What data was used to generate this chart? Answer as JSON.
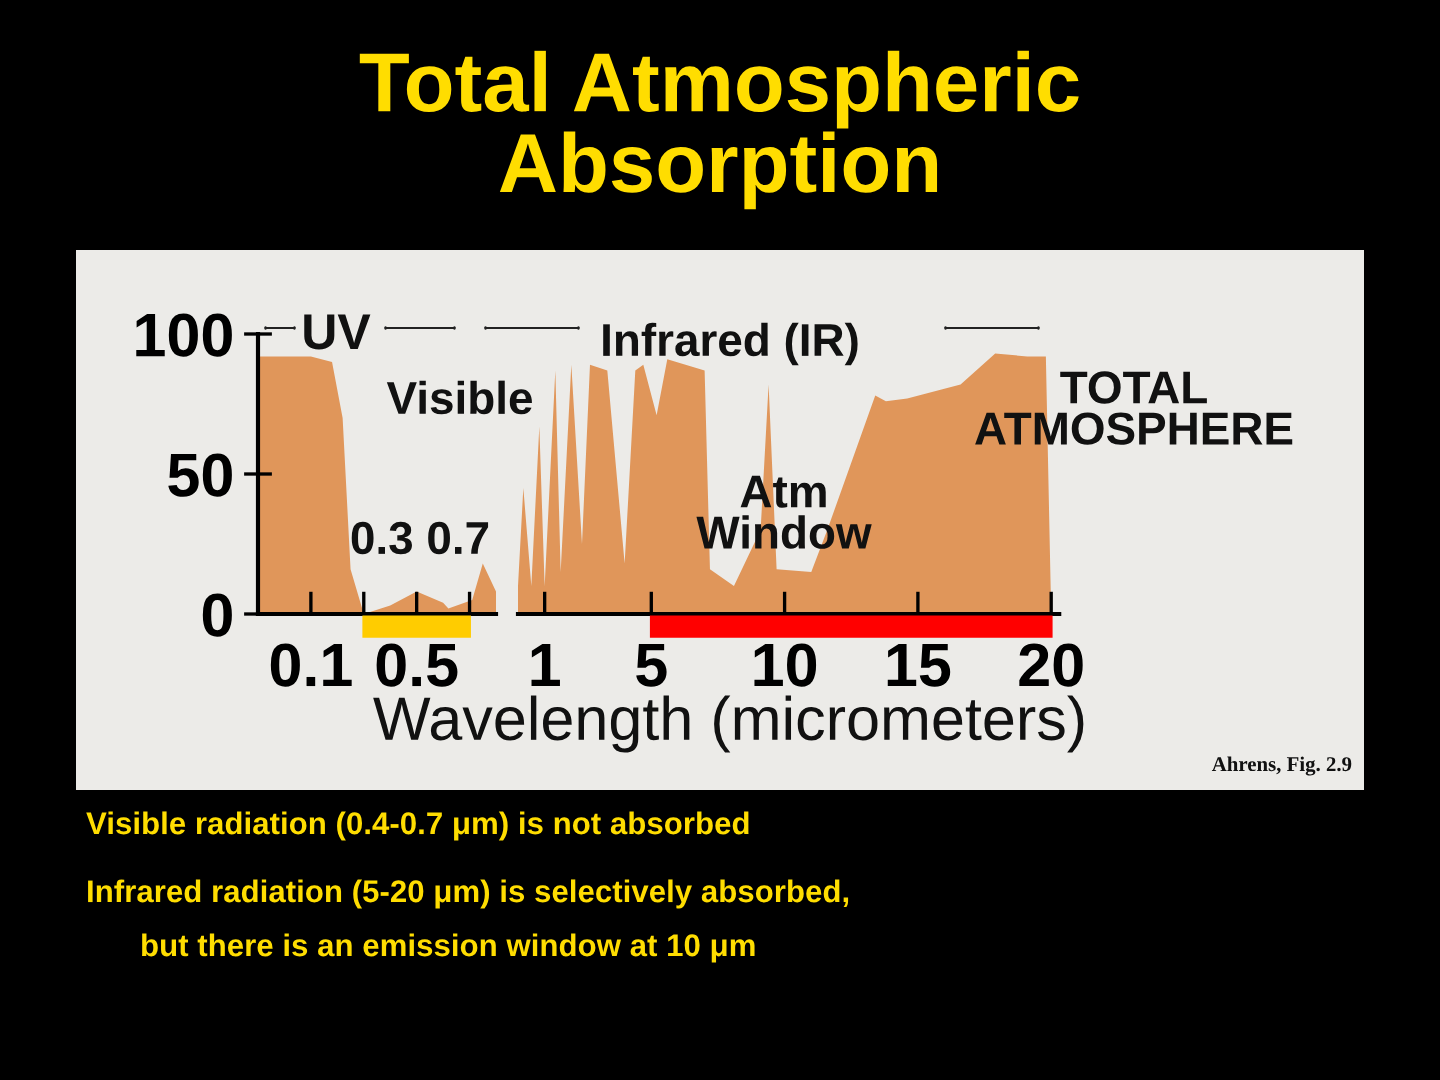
{
  "chart_data": [
    {
      "type": "area",
      "title": "Total Atmospheric\nAbsorption",
      "xlabel": "Wavelength (micrometers)",
      "color": "#e0965a",
      "x": [
        -0.1,
        0.0,
        0.1,
        0.18,
        0.22,
        0.25,
        0.3,
        0.4,
        0.5,
        0.6,
        0.62,
        0.71,
        0.75,
        0.8
      ],
      "values": [
        92,
        92,
        92,
        90,
        70,
        16,
        0,
        3,
        8,
        4,
        2,
        5,
        18,
        8
      ],
      "xlim": [
        -0.1,
        0.8
      ],
      "ylim": [
        0,
        100
      ],
      "yticks": [
        0,
        50,
        100
      ],
      "xticks": [
        0.1,
        {
          "value": 0.3,
          "label": null
        },
        0.5,
        {
          "value": 0.7,
          "label": null
        }
      ],
      "grid": false,
      "legend": false,
      "annotations": [
        "UV",
        "Visible",
        "0.3 0.7",
        "Ahrens, Fig. 2.9",
        "Visible radiation (0.4-0.7 μm) is not absorbed",
        "Infrared radiation (5-20 μm) is selectively absorbed,",
        "but there is an emission window at 10 μm"
      ]
    },
    {
      "type": "area",
      "color": "#e0965a",
      "x": [
        0,
        0.2,
        0.5,
        0.8,
        1.0,
        1.4,
        1.6,
        2.0,
        2.4,
        2.7,
        3.35,
        4.0,
        4.4,
        4.7,
        5.2,
        5.6,
        7.0,
        7.2,
        8.1,
        9.1,
        9.4,
        9.7,
        11.0,
        11.6,
        13.4,
        13.8,
        14.6,
        16.6,
        17.9,
        19.1,
        19.8,
        20.0
      ],
      "values": [
        10,
        45,
        10,
        67,
        10,
        87,
        15,
        89,
        25,
        89,
        87,
        18,
        87,
        89,
        71,
        91,
        87,
        16,
        10,
        30,
        82,
        16,
        15,
        30,
        78,
        76,
        77,
        82,
        93,
        92,
        92,
        0
      ],
      "xlim": [
        0,
        20.3
      ],
      "ylim": [
        0,
        100
      ],
      "xticks": [
        1,
        5,
        10,
        15,
        20
      ],
      "tick_labels": "x",
      "grid": false,
      "legend": false,
      "annotations": [
        "Infrared (IR)",
        "Atm\nWindow",
        "TOTAL\nATMOSPHERE"
      ]
    }
  ]
}
